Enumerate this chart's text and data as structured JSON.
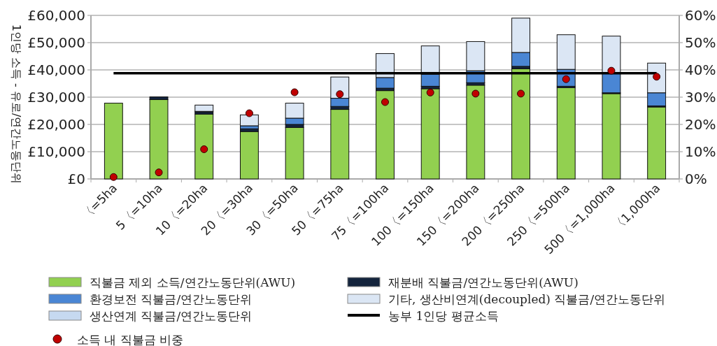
{
  "chart_data": {
    "type": "bar",
    "stacked": true,
    "ylabel": "1인당 소득 - 유로/연간노동단위",
    "categories": [
      "〈=5ha",
      "5〈=10ha",
      "10〈=20ha",
      "20〈=30ha",
      "30〈=50ha",
      "50〈=75ha",
      "75〈=100ha",
      "100〈=150ha",
      "150〈=200ha",
      "200〈=250ha",
      "250〈=500ha",
      "500〈=1,000ha",
      "〈1,000ha"
    ],
    "series": [
      {
        "name": "직불금 제외 소득/연간노동단위(AWU)",
        "color": "#92d050",
        "values": [
          27800,
          29100,
          23800,
          17400,
          18900,
          25500,
          32400,
          33100,
          34400,
          40400,
          33500,
          31300,
          26400
        ]
      },
      {
        "name": "재분배 직불금/연간노동단위(AWU)",
        "color": "#14243d",
        "values": [
          null,
          1000,
          800,
          1000,
          1100,
          1100,
          900,
          900,
          900,
          900,
          500,
          300,
          400
        ]
      },
      {
        "name": "환경보전 직불금/연간노동단위",
        "color": "#4a86d4",
        "values": [
          null,
          null,
          200,
          1100,
          2300,
          3000,
          3900,
          4400,
          4400,
          5100,
          6200,
          7200,
          4800
        ]
      },
      {
        "name": "생산연계 직불금/연간노동단위",
        "color": "#c6d9f0",
        "values": [
          null,
          null,
          null,
          null,
          null,
          null,
          null,
          null,
          null,
          null,
          null,
          null,
          null
        ]
      },
      {
        "name": "기타, 생산비연계(decoupled) 직불금/연간노동단위",
        "color": "#dbe6f4",
        "values": [
          null,
          null,
          2300,
          4000,
          5500,
          7800,
          8800,
          10400,
          10700,
          12600,
          12700,
          13600,
          10900
        ]
      },
      {
        "name": "농부 1인당 평균소득",
        "type": "line",
        "color": "#000000",
        "values": [
          38800,
          38800,
          38800,
          38800,
          38800,
          38800,
          38800,
          38800,
          38800,
          38800,
          38800,
          38800,
          38800
        ]
      },
      {
        "name": "소득 내 직불금 비중",
        "type": "scatter",
        "axis": "y2",
        "color": "#c00000",
        "marker": "circle",
        "values": [
          0.7,
          2.4,
          10.9,
          24.1,
          31.8,
          31.1,
          28.2,
          31.7,
          31.3,
          31.3,
          36.6,
          39.7,
          37.5
        ]
      }
    ],
    "ylim": [
      0,
      60000
    ],
    "yticks": [
      {
        "value": 0,
        "label": "£0"
      },
      {
        "value": 10000,
        "label": "£10,000"
      },
      {
        "value": 20000,
        "label": "£20,000"
      },
      {
        "value": 30000,
        "label": "£30,000"
      },
      {
        "value": 40000,
        "label": "£40,000"
      },
      {
        "value": 50000,
        "label": "£50,000"
      },
      {
        "value": 60000,
        "label": "£60,000"
      }
    ],
    "y2lim": [
      0,
      60
    ],
    "y2ticks": [
      {
        "value": 0,
        "label": "0%"
      },
      {
        "value": 10,
        "label": "10%"
      },
      {
        "value": 20,
        "label": "20%"
      },
      {
        "value": 30,
        "label": "30%"
      },
      {
        "value": 40,
        "label": "40%"
      },
      {
        "value": 50,
        "label": "50%"
      },
      {
        "value": 60,
        "label": "60%"
      }
    ],
    "grid": "y",
    "legend": "bottom"
  }
}
